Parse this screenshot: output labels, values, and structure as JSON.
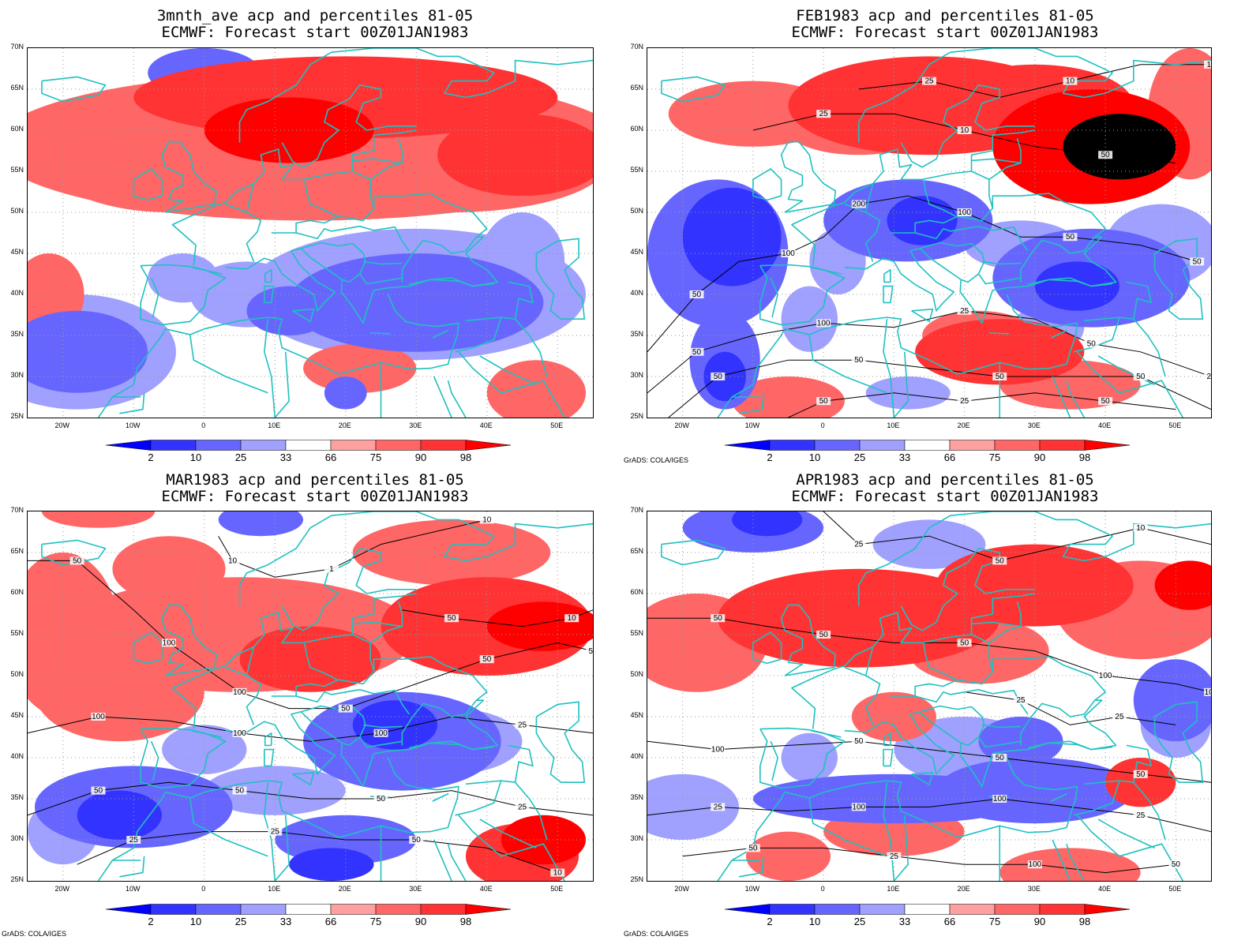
{
  "panels": [
    {
      "title1": "3mnth_ave acp and percentiles 81-05",
      "title2": "ECMWF: Forecast start 00Z01JAN1983",
      "credit": "",
      "contour_labels": []
    },
    {
      "title1": "FEB1983 acp and percentiles 81-05",
      "title2": "ECMWF: Forecast start 00Z01JAN1983",
      "credit": "GrADS: COLA/IGES",
      "contour_labels": [
        "50",
        "100",
        "200",
        "100",
        "50",
        "50",
        "50",
        "100",
        "25",
        "50",
        "25",
        "50",
        "50",
        "50",
        "50",
        "50",
        "25",
        "50",
        "25",
        "10",
        "50",
        "25",
        "10",
        "10",
        "25",
        "1",
        "1"
      ]
    },
    {
      "title1": "MAR1983 acp and percentiles 81-05",
      "title2": "ECMWF: Forecast start 00Z01JAN1983",
      "credit": "GrADS: COLA/IGES",
      "contour_labels": [
        "50",
        "100",
        "100",
        "50",
        "50",
        "50",
        "100",
        "100",
        "100",
        "25",
        "50",
        "50",
        "50",
        "25",
        "25",
        "25",
        "50",
        "10",
        "10",
        "1",
        "10",
        "50",
        "10",
        "1",
        "25"
      ]
    },
    {
      "title1": "APR1983 acp and percentiles 81-05",
      "title2": "ECMWF: Forecast start 00Z01JAN1983",
      "credit": "GrADS: COLA/IGES",
      "contour_labels": [
        "50",
        "50",
        "50",
        "100",
        "100",
        "100",
        "50",
        "50",
        "50",
        "25",
        "100",
        "100",
        "25",
        "50",
        "25",
        "100",
        "50",
        "25",
        "50",
        "10",
        "25",
        "25",
        "50",
        "10",
        "10",
        "10",
        "1",
        "1",
        "10",
        "25"
      ]
    }
  ],
  "lat_labels": [
    "70N",
    "65N",
    "60N",
    "55N",
    "50N",
    "45N",
    "40N",
    "35N",
    "30N",
    "25N"
  ],
  "lon_labels": [
    "20W",
    "10W",
    "0",
    "10E",
    "20E",
    "30E",
    "40E",
    "50E"
  ],
  "colorbar": {
    "labels": [
      "2",
      "10",
      "25",
      "33",
      "66",
      "75",
      "90",
      "98"
    ],
    "colors": [
      "#0000ff",
      "#3333ff",
      "#6666ff",
      "#a0a0ff",
      "#ffffff",
      "#ffa0a0",
      "#ff6666",
      "#ff3333",
      "#ff0000"
    ]
  },
  "colors": {
    "coastline": "#20c0c0",
    "contour": "#000000",
    "grid": "#999999"
  }
}
